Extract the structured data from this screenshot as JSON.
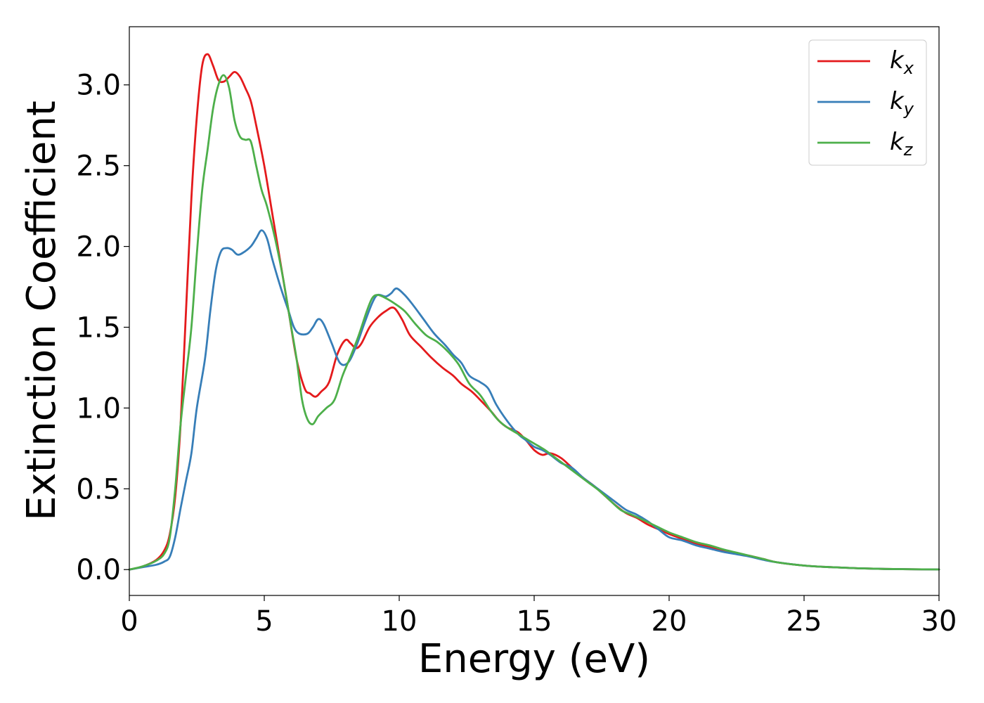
{
  "chart_data": {
    "type": "line",
    "xlabel": "Energy (eV)",
    "ylabel": "Extinction Coefficient",
    "xlim": [
      0,
      30
    ],
    "ylim": [
      -0.16,
      3.36
    ],
    "xticks": [
      0,
      5,
      10,
      15,
      20,
      25,
      30
    ],
    "yticks": [
      0.0,
      0.5,
      1.0,
      1.5,
      2.0,
      2.5,
      3.0
    ],
    "xtick_labels": [
      "0",
      "5",
      "10",
      "15",
      "20",
      "25",
      "30"
    ],
    "ytick_labels": [
      "0.0",
      "0.5",
      "1.0",
      "1.5",
      "2.0",
      "2.5",
      "3.0"
    ],
    "grid": false,
    "legend_position": "top-right",
    "series": [
      {
        "name": "k_x",
        "label_main": "k",
        "label_sub": "x",
        "color": "#e41a1c",
        "points": [
          [
            0,
            0
          ],
          [
            0.5,
            0.02
          ],
          [
            1.0,
            0.06
          ],
          [
            1.3,
            0.12
          ],
          [
            1.5,
            0.22
          ],
          [
            1.7,
            0.45
          ],
          [
            1.9,
            0.9
          ],
          [
            2.1,
            1.6
          ],
          [
            2.3,
            2.3
          ],
          [
            2.5,
            2.8
          ],
          [
            2.7,
            3.12
          ],
          [
            2.9,
            3.19
          ],
          [
            3.1,
            3.12
          ],
          [
            3.3,
            3.03
          ],
          [
            3.5,
            3.02
          ],
          [
            3.7,
            3.05
          ],
          [
            3.9,
            3.08
          ],
          [
            4.1,
            3.05
          ],
          [
            4.3,
            2.98
          ],
          [
            4.5,
            2.9
          ],
          [
            4.7,
            2.75
          ],
          [
            5.0,
            2.5
          ],
          [
            5.3,
            2.2
          ],
          [
            5.6,
            1.9
          ],
          [
            5.9,
            1.6
          ],
          [
            6.2,
            1.3
          ],
          [
            6.5,
            1.12
          ],
          [
            6.7,
            1.09
          ],
          [
            6.9,
            1.07
          ],
          [
            7.1,
            1.1
          ],
          [
            7.4,
            1.16
          ],
          [
            7.7,
            1.33
          ],
          [
            8.0,
            1.42
          ],
          [
            8.2,
            1.4
          ],
          [
            8.4,
            1.37
          ],
          [
            8.6,
            1.4
          ],
          [
            8.9,
            1.5
          ],
          [
            9.2,
            1.56
          ],
          [
            9.5,
            1.6
          ],
          [
            9.8,
            1.62
          ],
          [
            10.1,
            1.55
          ],
          [
            10.4,
            1.45
          ],
          [
            10.8,
            1.38
          ],
          [
            11.2,
            1.31
          ],
          [
            11.6,
            1.25
          ],
          [
            12.0,
            1.2
          ],
          [
            12.3,
            1.15
          ],
          [
            12.7,
            1.1
          ],
          [
            13.0,
            1.05
          ],
          [
            13.4,
            0.98
          ],
          [
            13.7,
            0.92
          ],
          [
            14.0,
            0.88
          ],
          [
            14.4,
            0.85
          ],
          [
            14.7,
            0.8
          ],
          [
            15.0,
            0.74
          ],
          [
            15.3,
            0.71
          ],
          [
            15.6,
            0.72
          ],
          [
            16.0,
            0.69
          ],
          [
            16.4,
            0.63
          ],
          [
            16.8,
            0.57
          ],
          [
            17.2,
            0.52
          ],
          [
            17.6,
            0.46
          ],
          [
            18.0,
            0.4
          ],
          [
            18.4,
            0.35
          ],
          [
            18.8,
            0.32
          ],
          [
            19.2,
            0.28
          ],
          [
            19.6,
            0.25
          ],
          [
            20.0,
            0.22
          ],
          [
            20.5,
            0.19
          ],
          [
            21.0,
            0.16
          ],
          [
            21.5,
            0.14
          ],
          [
            22.0,
            0.12
          ],
          [
            22.5,
            0.1
          ],
          [
            23.0,
            0.085
          ],
          [
            23.5,
            0.065
          ],
          [
            24.0,
            0.045
          ],
          [
            25.0,
            0.025
          ],
          [
            26.0,
            0.015
          ],
          [
            27.0,
            0.008
          ],
          [
            28.0,
            0.004
          ],
          [
            29.0,
            0.002
          ],
          [
            30.0,
            0.001
          ]
        ]
      },
      {
        "name": "k_y",
        "label_main": "k",
        "label_sub": "y",
        "color": "#377eb8",
        "points": [
          [
            0,
            0
          ],
          [
            0.5,
            0.015
          ],
          [
            1.0,
            0.03
          ],
          [
            1.3,
            0.05
          ],
          [
            1.5,
            0.08
          ],
          [
            1.7,
            0.2
          ],
          [
            1.9,
            0.38
          ],
          [
            2.1,
            0.55
          ],
          [
            2.3,
            0.72
          ],
          [
            2.5,
            1.0
          ],
          [
            2.8,
            1.3
          ],
          [
            3.0,
            1.6
          ],
          [
            3.2,
            1.85
          ],
          [
            3.4,
            1.97
          ],
          [
            3.6,
            1.99
          ],
          [
            3.8,
            1.98
          ],
          [
            4.0,
            1.95
          ],
          [
            4.2,
            1.96
          ],
          [
            4.5,
            2.0
          ],
          [
            4.7,
            2.05
          ],
          [
            4.9,
            2.1
          ],
          [
            5.1,
            2.05
          ],
          [
            5.3,
            1.92
          ],
          [
            5.6,
            1.75
          ],
          [
            5.9,
            1.6
          ],
          [
            6.1,
            1.5
          ],
          [
            6.3,
            1.46
          ],
          [
            6.6,
            1.46
          ],
          [
            6.8,
            1.5
          ],
          [
            7.0,
            1.55
          ],
          [
            7.2,
            1.52
          ],
          [
            7.5,
            1.4
          ],
          [
            7.8,
            1.28
          ],
          [
            8.1,
            1.28
          ],
          [
            8.4,
            1.38
          ],
          [
            8.7,
            1.52
          ],
          [
            9.0,
            1.65
          ],
          [
            9.2,
            1.7
          ],
          [
            9.5,
            1.69
          ],
          [
            9.7,
            1.71
          ],
          [
            9.9,
            1.74
          ],
          [
            10.2,
            1.7
          ],
          [
            10.5,
            1.64
          ],
          [
            10.9,
            1.55
          ],
          [
            11.3,
            1.46
          ],
          [
            11.7,
            1.39
          ],
          [
            12.0,
            1.33
          ],
          [
            12.3,
            1.28
          ],
          [
            12.6,
            1.2
          ],
          [
            13.0,
            1.16
          ],
          [
            13.3,
            1.12
          ],
          [
            13.6,
            1.02
          ],
          [
            14.0,
            0.92
          ],
          [
            14.4,
            0.84
          ],
          [
            14.7,
            0.8
          ],
          [
            15.0,
            0.76
          ],
          [
            15.3,
            0.74
          ],
          [
            15.6,
            0.71
          ],
          [
            16.0,
            0.66
          ],
          [
            16.4,
            0.63
          ],
          [
            16.8,
            0.57
          ],
          [
            17.2,
            0.52
          ],
          [
            17.6,
            0.47
          ],
          [
            18.0,
            0.42
          ],
          [
            18.4,
            0.37
          ],
          [
            18.8,
            0.34
          ],
          [
            19.2,
            0.3
          ],
          [
            19.6,
            0.25
          ],
          [
            20.0,
            0.2
          ],
          [
            20.5,
            0.18
          ],
          [
            21.0,
            0.15
          ],
          [
            21.5,
            0.13
          ],
          [
            22.0,
            0.11
          ],
          [
            22.5,
            0.095
          ],
          [
            23.0,
            0.08
          ],
          [
            23.5,
            0.06
          ],
          [
            24.0,
            0.045
          ],
          [
            25.0,
            0.025
          ],
          [
            26.0,
            0.015
          ],
          [
            27.0,
            0.008
          ],
          [
            28.0,
            0.004
          ],
          [
            29.0,
            0.002
          ],
          [
            30.0,
            0.001
          ]
        ]
      },
      {
        "name": "k_z",
        "label_main": "k",
        "label_sub": "z",
        "color": "#4daf4a",
        "points": [
          [
            0,
            0
          ],
          [
            0.5,
            0.02
          ],
          [
            1.0,
            0.055
          ],
          [
            1.3,
            0.1
          ],
          [
            1.5,
            0.2
          ],
          [
            1.7,
            0.5
          ],
          [
            1.9,
            0.9
          ],
          [
            2.1,
            1.2
          ],
          [
            2.3,
            1.5
          ],
          [
            2.5,
            1.95
          ],
          [
            2.7,
            2.35
          ],
          [
            2.9,
            2.6
          ],
          [
            3.1,
            2.85
          ],
          [
            3.3,
            3.0
          ],
          [
            3.5,
            3.06
          ],
          [
            3.7,
            2.98
          ],
          [
            3.9,
            2.78
          ],
          [
            4.1,
            2.68
          ],
          [
            4.3,
            2.66
          ],
          [
            4.5,
            2.65
          ],
          [
            4.7,
            2.5
          ],
          [
            4.9,
            2.35
          ],
          [
            5.1,
            2.25
          ],
          [
            5.4,
            2.05
          ],
          [
            5.7,
            1.8
          ],
          [
            6.0,
            1.5
          ],
          [
            6.2,
            1.3
          ],
          [
            6.4,
            1.05
          ],
          [
            6.6,
            0.93
          ],
          [
            6.8,
            0.9
          ],
          [
            7.0,
            0.95
          ],
          [
            7.3,
            1.0
          ],
          [
            7.6,
            1.05
          ],
          [
            7.9,
            1.2
          ],
          [
            8.2,
            1.32
          ],
          [
            8.5,
            1.45
          ],
          [
            8.8,
            1.6
          ],
          [
            9.0,
            1.68
          ],
          [
            9.2,
            1.7
          ],
          [
            9.5,
            1.68
          ],
          [
            9.8,
            1.65
          ],
          [
            10.2,
            1.6
          ],
          [
            10.6,
            1.52
          ],
          [
            11.0,
            1.45
          ],
          [
            11.4,
            1.41
          ],
          [
            11.8,
            1.35
          ],
          [
            12.2,
            1.27
          ],
          [
            12.6,
            1.15
          ],
          [
            13.0,
            1.08
          ],
          [
            13.4,
            0.98
          ],
          [
            13.7,
            0.92
          ],
          [
            14.0,
            0.88
          ],
          [
            14.4,
            0.84
          ],
          [
            14.7,
            0.81
          ],
          [
            15.0,
            0.78
          ],
          [
            15.4,
            0.74
          ],
          [
            15.8,
            0.69
          ],
          [
            16.2,
            0.64
          ],
          [
            16.6,
            0.59
          ],
          [
            17.0,
            0.54
          ],
          [
            17.4,
            0.49
          ],
          [
            17.8,
            0.43
          ],
          [
            18.2,
            0.37
          ],
          [
            18.6,
            0.34
          ],
          [
            19.0,
            0.31
          ],
          [
            19.5,
            0.27
          ],
          [
            20.0,
            0.23
          ],
          [
            20.5,
            0.2
          ],
          [
            21.0,
            0.17
          ],
          [
            21.5,
            0.15
          ],
          [
            22.0,
            0.125
          ],
          [
            22.5,
            0.105
          ],
          [
            23.0,
            0.085
          ],
          [
            23.5,
            0.065
          ],
          [
            24.0,
            0.045
          ],
          [
            25.0,
            0.025
          ],
          [
            26.0,
            0.015
          ],
          [
            27.0,
            0.008
          ],
          [
            28.0,
            0.004
          ],
          [
            29.0,
            0.002
          ],
          [
            30.0,
            0.001
          ]
        ]
      }
    ]
  }
}
